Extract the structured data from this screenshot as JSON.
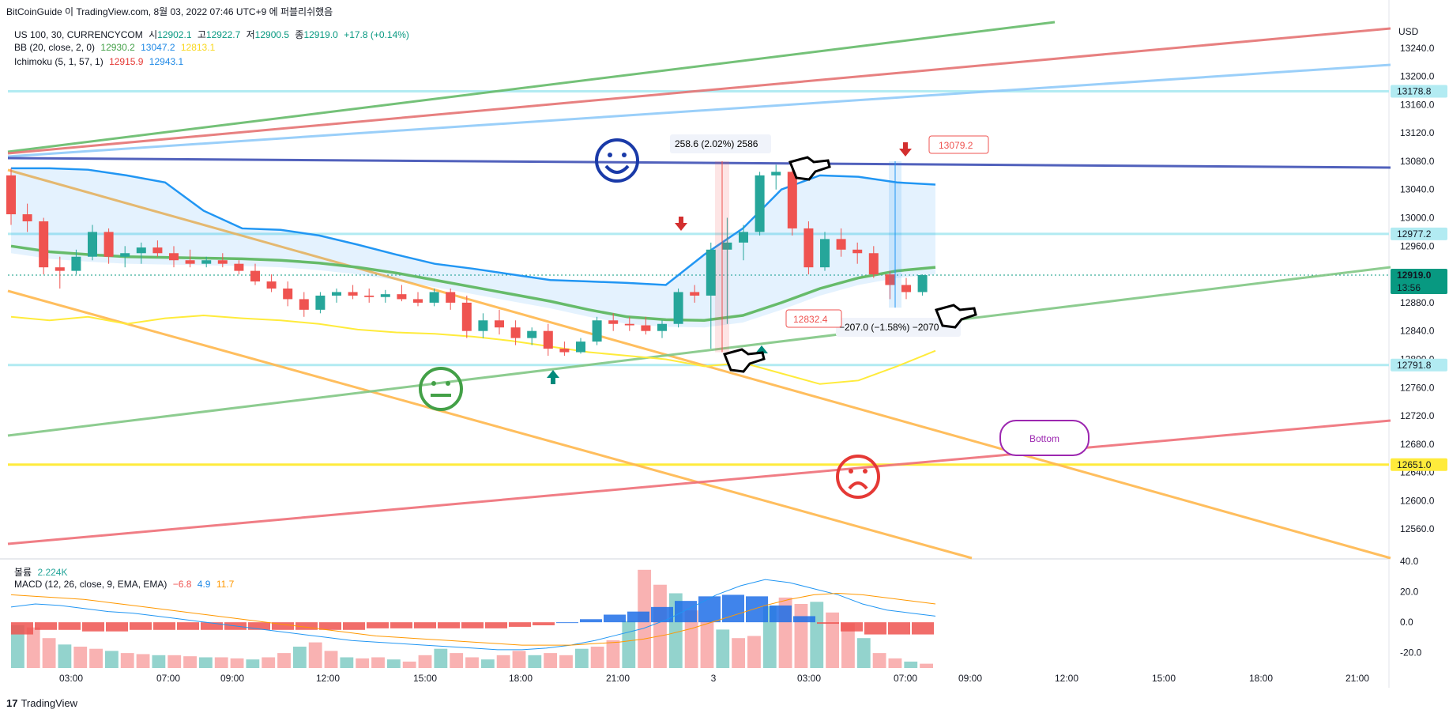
{
  "header": {
    "publisher": "BitCoinGuide 이 TradingView.com, 8월 03, 2022 07:46 UTC+9 에 퍼블리쉬했음",
    "symbol": "US 100, 30, CURRENCYCOM",
    "open_label": "시",
    "open": "12902.1",
    "high_label": "고",
    "high": "12922.7",
    "low_label": "저",
    "low": "12900.5",
    "close_label": "종",
    "close": "12919.0",
    "change": "+17.8 (+0.14%)",
    "bb_label": "BB (20, close, 2, 0)",
    "bb_basis": "12930.2",
    "bb_upper": "13047.2",
    "bb_lower": "12813.1",
    "ichi_label": "Ichimoku (5, 1, 57, 1)",
    "ichi_conv": "12915.9",
    "ichi_base": "12943.1",
    "vol_label": "볼륨",
    "vol_value": "2.224K",
    "macd_label": "MACD (12, 26, close, 9, EMA, EMA)",
    "macd_hist": "−6.8",
    "macd_line": "4.9",
    "macd_signal": "11.7"
  },
  "footer": {
    "brand": "TradingView"
  },
  "colors": {
    "up": "#26a69a",
    "down": "#ef5350",
    "blue": "#2196f3",
    "green": "#4caf50",
    "yellow": "#ffeb3b",
    "orange": "#ff9800",
    "navy": "#1e3a8a",
    "red": "#e53935",
    "purple": "#9c27b0"
  },
  "annotations": {
    "measure_up": "258.6 (2.02%) 2586",
    "measure_down": "−207.0 (−1.58%) −2070",
    "price_label_high": "13079.2",
    "price_label_low": "12832.4",
    "callout": "Bottom"
  },
  "chart_data": [
    {
      "type": "candlestick",
      "title": "US 100, 30, CURRENCYCOM",
      "currency": "USD",
      "x_ticks": [
        "03:00",
        "07:00",
        "09:00",
        "12:00",
        "15:00",
        "18:00",
        "21:00",
        "3",
        "03:00",
        "07:00",
        "09:00",
        "12:00",
        "15:00",
        "18:00",
        "21:00"
      ],
      "y_ticks": [
        13240,
        13200,
        13160,
        13120,
        13080,
        13040,
        13000,
        12960,
        12920,
        12880,
        12840,
        12800,
        12760,
        12720,
        12680,
        12640,
        12600,
        12560
      ],
      "ylim": [
        12520,
        13280
      ],
      "price_tags": [
        {
          "label": "USD",
          "kind": "unit"
        },
        {
          "label": "13178.8",
          "value": 13178.8,
          "color": "#b2ebf2"
        },
        {
          "label": "12977.2",
          "value": 12977.2,
          "color": "#b2ebf2"
        },
        {
          "label": "12919.0",
          "value": 12919.0,
          "color": "#089981",
          "time": "13:56"
        },
        {
          "label": "12791.8",
          "value": 12791.8,
          "color": "#b2ebf2"
        },
        {
          "label": "12651.0",
          "value": 12651.0,
          "color": "#ffeb3b"
        }
      ],
      "horizontal_levels": [
        13178.8,
        12977.2,
        12791.8,
        12651.0
      ],
      "candles": [
        [
          13060,
          13070,
          12990,
          13005
        ],
        [
          13005,
          13020,
          12980,
          12995
        ],
        [
          12995,
          13000,
          12920,
          12930
        ],
        [
          12930,
          12945,
          12900,
          12925
        ],
        [
          12925,
          12955,
          12920,
          12945
        ],
        [
          12945,
          12990,
          12940,
          12980
        ],
        [
          12980,
          12985,
          12935,
          12945
        ],
        [
          12945,
          12960,
          12930,
          12950
        ],
        [
          12950,
          12965,
          12935,
          12958
        ],
        [
          12958,
          12968,
          12945,
          12950
        ],
        [
          12950,
          12960,
          12930,
          12940
        ],
        [
          12940,
          12955,
          12930,
          12935
        ],
        [
          12935,
          12945,
          12930,
          12940
        ],
        [
          12940,
          12950,
          12930,
          12935
        ],
        [
          12935,
          12940,
          12920,
          12925
        ],
        [
          12925,
          12935,
          12905,
          12910
        ],
        [
          12910,
          12920,
          12895,
          12900
        ],
        [
          12900,
          12910,
          12875,
          12885
        ],
        [
          12885,
          12895,
          12860,
          12870
        ],
        [
          12870,
          12895,
          12865,
          12890
        ],
        [
          12890,
          12900,
          12880,
          12895
        ],
        [
          12895,
          12905,
          12885,
          12890
        ],
        [
          12890,
          12900,
          12880,
          12888
        ],
        [
          12888,
          12898,
          12880,
          12892
        ],
        [
          12892,
          12905,
          12882,
          12885
        ],
        [
          12885,
          12895,
          12875,
          12880
        ],
        [
          12880,
          12900,
          12875,
          12895
        ],
        [
          12895,
          12900,
          12870,
          12880
        ],
        [
          12880,
          12890,
          12830,
          12840
        ],
        [
          12840,
          12865,
          12830,
          12855
        ],
        [
          12855,
          12870,
          12835,
          12845
        ],
        [
          12845,
          12855,
          12820,
          12830
        ],
        [
          12830,
          12845,
          12820,
          12840
        ],
        [
          12840,
          12850,
          12805,
          12815
        ],
        [
          12815,
          12825,
          12805,
          12810
        ],
        [
          12810,
          12830,
          12808,
          12825
        ],
        [
          12825,
          12860,
          12820,
          12855
        ],
        [
          12855,
          12865,
          12840,
          12850
        ],
        [
          12850,
          12860,
          12840,
          12848
        ],
        [
          12848,
          12860,
          12835,
          12840
        ],
        [
          12840,
          12855,
          12830,
          12850
        ],
        [
          12850,
          12900,
          12845,
          12895
        ],
        [
          12895,
          12905,
          12880,
          12890
        ],
        [
          12890,
          12965,
          12815,
          12955
        ],
        [
          12955,
          13000,
          12850,
          12965
        ],
        [
          12965,
          12990,
          12940,
          12980
        ],
        [
          12980,
          13065,
          12975,
          13060
        ],
        [
          13060,
          13075,
          13040,
          13065
        ],
        [
          13065,
          13072,
          12975,
          12985
        ],
        [
          12985,
          12995,
          12920,
          12930
        ],
        [
          12930,
          12980,
          12925,
          12970
        ],
        [
          12970,
          12985,
          12945,
          12955
        ],
        [
          12955,
          12965,
          12935,
          12950
        ],
        [
          12950,
          12960,
          12915,
          12920
        ],
        [
          12920,
          12925,
          12885,
          12905
        ],
        [
          12905,
          12915,
          12885,
          12895
        ],
        [
          12895,
          12920,
          12890,
          12919
        ]
      ],
      "bb_basis": [
        12960,
        12952,
        12948,
        12945,
        12944,
        12943,
        12942,
        12940,
        12936,
        12930,
        12922,
        12912,
        12902,
        12892,
        12882,
        12870,
        12860,
        12856,
        12855,
        12862,
        12880,
        12900,
        12915,
        12925,
        12930
      ],
      "bb_lower": [
        12860,
        12855,
        12860,
        12850,
        12858,
        12862,
        12858,
        12855,
        12850,
        12842,
        12838,
        12836,
        12832,
        12826,
        12818,
        12810,
        12805,
        12800,
        12790,
        12795,
        12780,
        12765,
        12770,
        12790,
        12812
      ],
      "ichimoku_line": [
        13070,
        13070,
        13068,
        13060,
        13050,
        13010,
        12985,
        12983,
        12975,
        12962,
        12948,
        12935,
        12928,
        12920,
        12912,
        12910,
        12908,
        12905,
        12948,
        12985,
        13040,
        13060,
        13058,
        13050,
        13047
      ],
      "volume": [
        40,
        38,
        28,
        22,
        20,
        18,
        16,
        14,
        13,
        12,
        12,
        11,
        10,
        10,
        9,
        8,
        10,
        14,
        20,
        24,
        16,
        10,
        9,
        10,
        8,
        6,
        12,
        18,
        14,
        10,
        8,
        12,
        16,
        12,
        14,
        12,
        18,
        20,
        26,
        44,
        92,
        78,
        70,
        54,
        44,
        36,
        28,
        30,
        58,
        66,
        60,
        62,
        52,
        42,
        28,
        14,
        9,
        6,
        4
      ],
      "macd": [
        10,
        12,
        11,
        9,
        7,
        6,
        4,
        2,
        0,
        -2,
        -4,
        -6,
        -8,
        -10,
        -12,
        -13,
        -14,
        -15,
        -16,
        -17,
        -18,
        -18,
        -17,
        -15,
        -12,
        -8,
        -4,
        2,
        10,
        18,
        24,
        28,
        26,
        22,
        18,
        12,
        8,
        6,
        4
      ],
      "macd_signal": [
        18,
        17,
        16,
        15,
        13,
        11,
        9,
        7,
        5,
        3,
        1,
        -1,
        -3,
        -5,
        -7,
        -9,
        -10,
        -11,
        -12,
        -13,
        -14,
        -15,
        -15,
        -15,
        -14,
        -13,
        -11,
        -8,
        -4,
        1,
        6,
        11,
        15,
        18,
        19,
        18,
        16,
        14,
        12
      ],
      "macd_ylim": [
        -30,
        40
      ],
      "macd_ticks": [
        40.0,
        20.0,
        0.0,
        -20.0
      ]
    }
  ]
}
